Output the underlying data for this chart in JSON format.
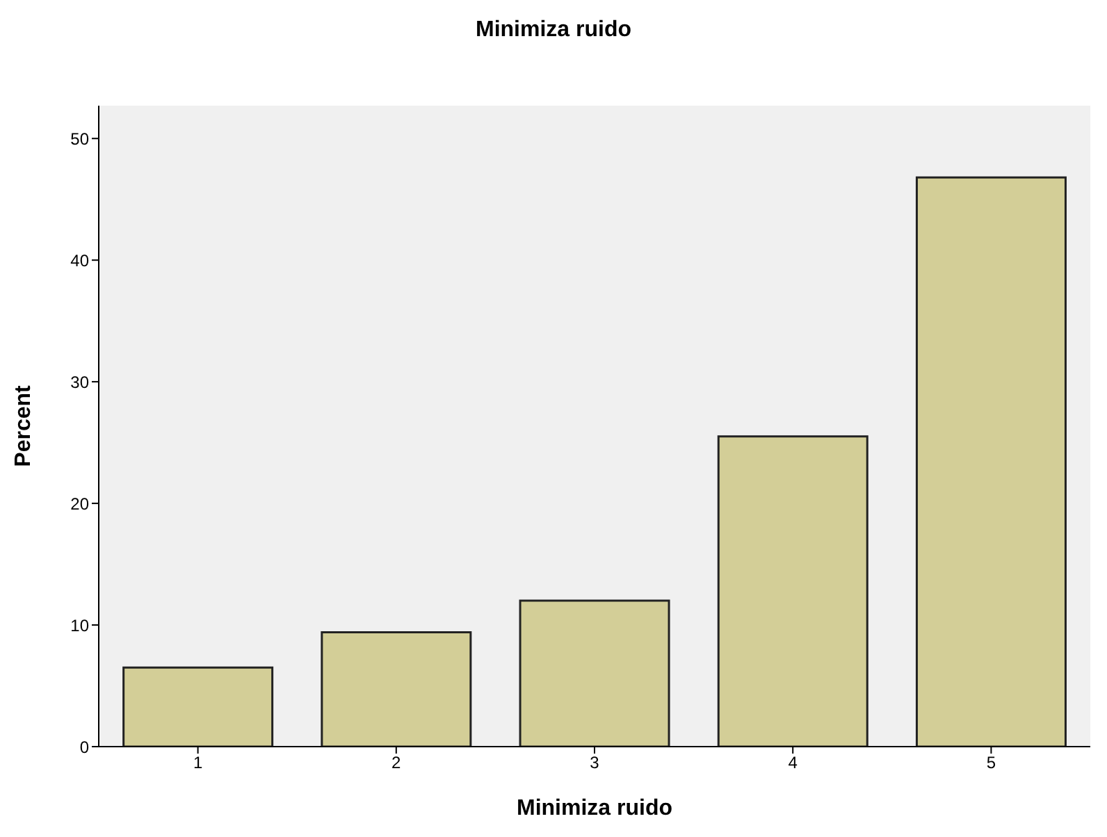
{
  "chart_data": {
    "type": "bar",
    "title": "Minimiza ruido",
    "xlabel": "Minimiza ruido",
    "ylabel": "Percent",
    "categories": [
      "1",
      "2",
      "3",
      "4",
      "5"
    ],
    "values": [
      6.5,
      9.4,
      12.0,
      25.5,
      46.8
    ],
    "color": "#d3ce97",
    "ylim": [
      0,
      52.7
    ],
    "yticks": [
      0,
      10,
      20,
      30,
      40,
      50
    ],
    "grid": false,
    "legend": false
  }
}
